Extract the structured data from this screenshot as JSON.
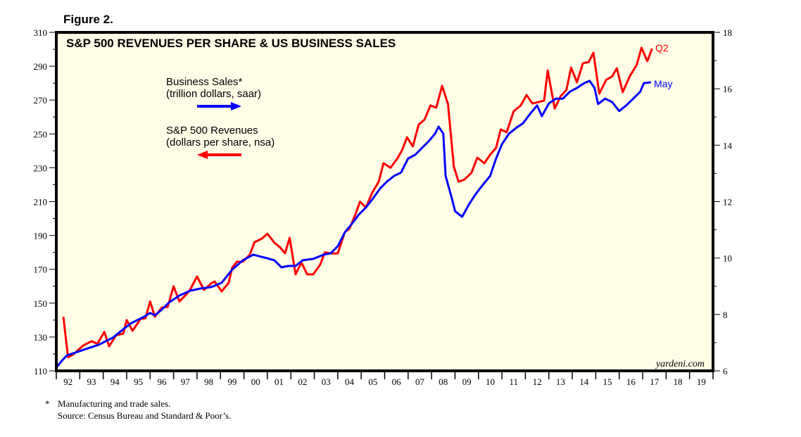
{
  "figure_label": "Figure 2.",
  "chart_data": {
    "type": "line",
    "title": "S&P 500 REVENUES PER SHARE & US BUSINESS SALES",
    "x_ticks": [
      "92",
      "93",
      "94",
      "95",
      "96",
      "97",
      "98",
      "99",
      "00",
      "01",
      "02",
      "03",
      "04",
      "05",
      "06",
      "07",
      "08",
      "09",
      "10",
      "11",
      "12",
      "13",
      "14",
      "15",
      "16",
      "17",
      "18",
      "19"
    ],
    "xlim": [
      1992,
      2020
    ],
    "y_left": {
      "lim": [
        110,
        310
      ],
      "ticks": [
        110,
        130,
        150,
        170,
        190,
        210,
        230,
        250,
        270,
        290,
        310
      ]
    },
    "y_right": {
      "lim": [
        6,
        18
      ],
      "ticks": [
        6,
        8,
        10,
        12,
        14,
        16,
        18
      ]
    },
    "grid": false,
    "background": "#fffde6",
    "series": [
      {
        "name": "S&P 500 Revenues",
        "sublabel": "(dollars per share, nsa)",
        "axis": "left",
        "color": "#ff0000",
        "end_label": "Q2",
        "x": [
          1992.3,
          1992.5,
          1992.75,
          1993.15,
          1993.5,
          1993.75,
          1994.05,
          1994.25,
          1994.55,
          1994.85,
          1995.0,
          1995.25,
          1995.6,
          1995.8,
          1996.0,
          1996.2,
          1996.5,
          1996.75,
          1997.0,
          1997.25,
          1997.55,
          1997.7,
          1998.0,
          1998.3,
          1998.6,
          1998.75,
          1999.05,
          1999.35,
          1999.5,
          1999.7,
          1999.95,
          2000.25,
          2000.45,
          2000.75,
          2001.0,
          2001.3,
          2001.55,
          2001.75,
          2001.95,
          2002.2,
          2002.45,
          2002.7,
          2002.95,
          2003.25,
          2003.45,
          2003.75,
          2004.0,
          2004.3,
          2004.5,
          2004.75,
          2004.95,
          2005.2,
          2005.45,
          2005.75,
          2005.95,
          2006.25,
          2006.55,
          2006.75,
          2006.95,
          2007.2,
          2007.45,
          2007.7,
          2007.95,
          2008.2,
          2008.45,
          2008.7,
          2008.95,
          2009.15,
          2009.4,
          2009.7,
          2009.95,
          2010.25,
          2010.5,
          2010.75,
          2010.95,
          2011.2,
          2011.5,
          2011.8,
          2012.05,
          2012.3,
          2012.55,
          2012.8,
          2012.95,
          2013.25,
          2013.5,
          2013.75,
          2013.95,
          2014.2,
          2014.45,
          2014.7,
          2014.9,
          2015.15,
          2015.45,
          2015.7,
          2015.9,
          2016.15,
          2016.45,
          2016.75,
          2016.95,
          2017.2,
          2017.4
        ],
        "values": [
          142,
          118,
          120,
          125,
          127.5,
          126,
          133,
          124.5,
          131,
          132,
          140,
          133.7,
          140.8,
          141,
          151,
          142,
          147.4,
          147.8,
          160,
          151,
          155.3,
          157.8,
          165.7,
          157.8,
          161.6,
          162.8,
          157,
          162,
          171,
          174.5,
          174.5,
          178.6,
          186,
          188,
          191,
          185.7,
          182.8,
          179.5,
          188.6,
          167,
          174,
          167,
          167,
          172.8,
          180,
          179.4,
          179.4,
          192,
          194,
          202.3,
          210,
          206.5,
          214.8,
          221.9,
          232.7,
          230,
          235.6,
          240.6,
          248,
          242.6,
          255.5,
          258.4,
          266.8,
          265.5,
          278.4,
          267.6,
          230.6,
          221.8,
          223,
          227,
          236,
          232.7,
          237.7,
          241.8,
          252.6,
          251,
          263.4,
          266.8,
          273,
          268,
          268.8,
          269.7,
          287.5,
          265,
          272.2,
          276,
          289.2,
          280.5,
          291.7,
          292.5,
          298,
          273.8,
          282,
          284,
          288.8,
          274.7,
          284,
          290.9,
          300.9,
          293,
          300.4
        ]
      },
      {
        "name": "Business Sales*",
        "sublabel": "(trillion dollars, saar)",
        "axis": "right",
        "color": "#0000ff",
        "end_label": "May",
        "x": [
          1992.0,
          1992.25,
          1992.45,
          1992.9,
          1993.35,
          1993.8,
          1994.1,
          1994.4,
          1994.85,
          1995.15,
          1995.45,
          1995.75,
          1995.99,
          1996.2,
          1996.5,
          1996.8,
          1997.25,
          1997.7,
          1998.15,
          1998.6,
          1999.05,
          1999.5,
          1999.95,
          2000.4,
          2000.76,
          2001.0,
          2001.3,
          2001.6,
          2001.9,
          2002.2,
          2002.5,
          2002.95,
          2003.4,
          2003.7,
          2004.0,
          2004.3,
          2004.6,
          2004.9,
          2005.2,
          2005.5,
          2005.8,
          2006.1,
          2006.4,
          2006.7,
          2007.0,
          2007.3,
          2007.6,
          2007.9,
          2008.15,
          2008.3,
          2008.5,
          2008.6,
          2008.85,
          2009.0,
          2009.3,
          2009.6,
          2009.9,
          2010.2,
          2010.5,
          2010.75,
          2011.0,
          2011.3,
          2011.6,
          2011.9,
          2012.2,
          2012.5,
          2012.7,
          2013.0,
          2013.3,
          2013.6,
          2013.9,
          2014.2,
          2014.5,
          2014.74,
          2014.95,
          2015.1,
          2015.4,
          2015.7,
          2016.0,
          2016.3,
          2016.6,
          2016.9,
          2017.05,
          2017.35
        ],
        "values": [
          6.12,
          6.37,
          6.55,
          6.67,
          6.8,
          6.92,
          7.05,
          7.17,
          7.47,
          7.67,
          7.8,
          7.92,
          8.05,
          7.97,
          8.17,
          8.42,
          8.67,
          8.84,
          8.92,
          8.97,
          9.12,
          9.59,
          9.92,
          10.12,
          10.04,
          9.99,
          9.92,
          9.67,
          9.72,
          9.72,
          9.92,
          9.97,
          10.12,
          10.17,
          10.42,
          10.91,
          11.21,
          11.54,
          11.79,
          12.11,
          12.46,
          12.71,
          12.91,
          13.03,
          13.53,
          13.66,
          13.91,
          14.16,
          14.41,
          14.66,
          14.41,
          12.91,
          12.16,
          11.66,
          11.46,
          11.91,
          12.29,
          12.61,
          12.91,
          13.53,
          14.03,
          14.41,
          14.61,
          14.78,
          15.11,
          15.41,
          15.03,
          15.48,
          15.65,
          15.65,
          15.9,
          16.03,
          16.2,
          16.28,
          16.03,
          15.46,
          15.65,
          15.53,
          15.21,
          15.41,
          15.65,
          15.9,
          16.2,
          16.23
        ]
      }
    ],
    "annotation": "yardeni.com"
  },
  "footnotes": [
    "*",
    "Manufacturing and trade sales.",
    "Source: Census Bureau and Standard & Poor’s."
  ]
}
